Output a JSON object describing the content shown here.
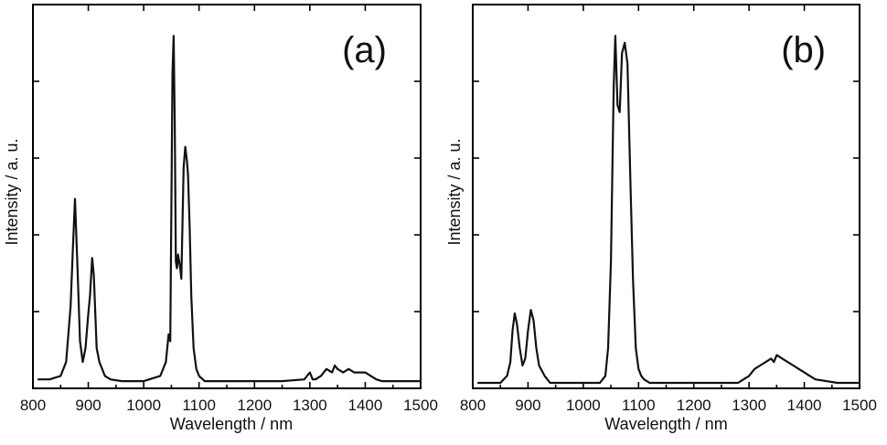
{
  "chart_data": [
    {
      "type": "line",
      "panel_label": "(a)",
      "xlabel": "Wavelength /  nm",
      "ylabel": "Intensity / a. u.",
      "xlim": [
        800,
        1500
      ],
      "x_ticks": [
        "800",
        "900",
        "1000",
        "1100",
        "1200",
        "1300",
        "1400",
        "1500"
      ],
      "y_ticks_labeled": false,
      "grid": false,
      "series": [
        {
          "x": [
            810,
            830,
            850,
            860,
            868,
            872,
            876,
            880,
            885,
            890,
            895,
            900,
            903,
            907,
            910,
            915,
            920,
            930,
            940,
            960,
            1000,
            1030,
            1040,
            1045,
            1048,
            1050,
            1052,
            1054,
            1056,
            1058,
            1060,
            1062,
            1066,
            1068,
            1070,
            1072,
            1075,
            1078,
            1080,
            1083,
            1086,
            1090,
            1095,
            1100,
            1110,
            1120,
            1150,
            1200,
            1250,
            1290,
            1300,
            1305,
            1310,
            1320,
            1330,
            1340,
            1345,
            1350,
            1360,
            1370,
            1380,
            1390,
            1400,
            1410,
            1420,
            1430,
            1460,
            1500
          ],
          "y": [
            0.01,
            0.01,
            0.02,
            0.06,
            0.22,
            0.38,
            0.53,
            0.35,
            0.12,
            0.06,
            0.1,
            0.2,
            0.25,
            0.36,
            0.31,
            0.1,
            0.06,
            0.02,
            0.01,
            0.005,
            0.005,
            0.02,
            0.06,
            0.14,
            0.12,
            0.5,
            0.89,
            1.0,
            0.75,
            0.35,
            0.33,
            0.37,
            0.33,
            0.3,
            0.45,
            0.62,
            0.68,
            0.64,
            0.6,
            0.45,
            0.25,
            0.1,
            0.04,
            0.02,
            0.005,
            0.005,
            0.005,
            0.005,
            0.005,
            0.01,
            0.03,
            0.01,
            0.01,
            0.02,
            0.04,
            0.03,
            0.05,
            0.04,
            0.03,
            0.04,
            0.03,
            0.03,
            0.03,
            0.02,
            0.01,
            0.005,
            0.005,
            0.005
          ]
        }
      ]
    },
    {
      "type": "line",
      "panel_label": "(b)",
      "xlabel": "Wavelength / nm",
      "ylabel": "Intensity / a. u.",
      "xlim": [
        800,
        1500
      ],
      "x_ticks": [
        "800",
        "900",
        "1000",
        "1100",
        "1200",
        "1300",
        "1400",
        "1500"
      ],
      "y_ticks_labeled": false,
      "grid": false,
      "series": [
        {
          "x": [
            810,
            850,
            862,
            868,
            872,
            876,
            880,
            885,
            890,
            895,
            900,
            905,
            910,
            915,
            920,
            930,
            940,
            960,
            1000,
            1030,
            1040,
            1045,
            1050,
            1055,
            1058,
            1062,
            1066,
            1070,
            1075,
            1080,
            1085,
            1090,
            1095,
            1100,
            1105,
            1110,
            1120,
            1150,
            1200,
            1250,
            1280,
            1290,
            1300,
            1310,
            1320,
            1330,
            1340,
            1345,
            1350,
            1360,
            1370,
            1380,
            1390,
            1400,
            1410,
            1420,
            1460,
            1500
          ],
          "y": [
            0.0,
            0.0,
            0.02,
            0.06,
            0.15,
            0.2,
            0.17,
            0.1,
            0.05,
            0.07,
            0.15,
            0.21,
            0.18,
            0.1,
            0.05,
            0.02,
            0.0,
            0.0,
            0.0,
            0.0,
            0.02,
            0.1,
            0.35,
            0.85,
            1.0,
            0.8,
            0.78,
            0.95,
            0.98,
            0.92,
            0.6,
            0.3,
            0.1,
            0.04,
            0.02,
            0.01,
            0.0,
            0.0,
            0.0,
            0.0,
            0.0,
            0.01,
            0.02,
            0.04,
            0.05,
            0.06,
            0.07,
            0.06,
            0.08,
            0.07,
            0.06,
            0.05,
            0.04,
            0.03,
            0.02,
            0.01,
            0.0,
            0.0
          ]
        }
      ]
    }
  ]
}
